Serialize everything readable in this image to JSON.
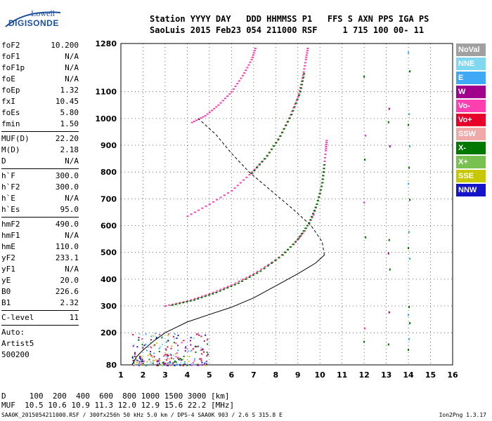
{
  "logo": {
    "line1": "Lowell",
    "line2": "DIGISONDE"
  },
  "header": {
    "line1": "Station YYYY DAY   DDD HHMMSS P1   FFS S AXN PPS IGA PS",
    "line2": "SaoLuis 2015 Feb23 054 211000 RSF     1 715 100 00- 11"
  },
  "params": {
    "g1": [
      {
        "name": "foF2",
        "value": "10.200"
      },
      {
        "name": "foF1",
        "value": "N/A"
      },
      {
        "name": "foF1p",
        "value": "N/A"
      },
      {
        "name": "foE",
        "value": "N/A"
      },
      {
        "name": "foEp",
        "value": "1.32"
      },
      {
        "name": "fxI",
        "value": "10.45"
      },
      {
        "name": "foEs",
        "value": "5.80"
      },
      {
        "name": "fmin",
        "value": "1.50"
      }
    ],
    "g2": [
      {
        "name": "MUF(D)",
        "value": "22.20"
      },
      {
        "name": "M(D)",
        "value": "2.18"
      },
      {
        "name": "D",
        "value": "N/A"
      }
    ],
    "g3": [
      {
        "name": "h`F",
        "value": "300.0"
      },
      {
        "name": "h`F2",
        "value": "300.0"
      },
      {
        "name": "h`E",
        "value": "N/A"
      },
      {
        "name": "h`Es",
        "value": "95.0"
      }
    ],
    "g4": [
      {
        "name": "hmF2",
        "value": "490.0"
      },
      {
        "name": "hmF1",
        "value": "N/A"
      },
      {
        "name": "hmE",
        "value": "110.0"
      },
      {
        "name": "yF2",
        "value": "233.1"
      },
      {
        "name": "yF1",
        "value": "N/A"
      },
      {
        "name": "yE",
        "value": "20.0"
      },
      {
        "name": "B0",
        "value": "226.6"
      },
      {
        "name": "B1",
        "value": "2.32"
      }
    ],
    "g5": [
      {
        "name": "C-level",
        "value": "11"
      }
    ],
    "auto": [
      "Auto:",
      "Artist5",
      "500200"
    ]
  },
  "legend": [
    {
      "label": "NoVal",
      "color": "#a0a0a0"
    },
    {
      "label": "NNE",
      "color": "#7fd8f0"
    },
    {
      "label": "E",
      "color": "#3fa9f5"
    },
    {
      "label": "W",
      "color": "#a0008c"
    },
    {
      "label": "Vo-",
      "color": "#ff3fb0"
    },
    {
      "label": "Vo+",
      "color": "#e8002a"
    },
    {
      "label": "SSW",
      "color": "#f0a8a8"
    },
    {
      "label": "X-",
      "color": "#007800"
    },
    {
      "label": "X+",
      "color": "#78c050"
    },
    {
      "label": "SSE",
      "color": "#c8c800"
    },
    {
      "label": "NNW",
      "color": "#1414c8"
    }
  ],
  "bottom": {
    "line1": "D     100  200  400  600  800 1000 1500 3000 [km]",
    "line2": "MUF  10.5 10.6 10.9 11.3 12.0 12.9 15.6 22.2 [MHz]"
  },
  "footer": {
    "left": "SAA0K_2015054211000.RSF / 300fx256h 50 kHz 5.0 km / DPS-4 SAA0K 903 / 2.6 S 315.8 E",
    "right": "Ion2Png 1.3.17"
  },
  "chart_data": {
    "type": "scatter",
    "xlim": [
      1,
      16
    ],
    "ylim": [
      80,
      1280
    ],
    "xticks": [
      1,
      2,
      3,
      4,
      5,
      6,
      7,
      8,
      9,
      10,
      11,
      12,
      13,
      14,
      15,
      16
    ],
    "yticks": [
      80,
      200,
      300,
      400,
      500,
      600,
      700,
      800,
      900,
      1000,
      1100,
      1280
    ],
    "grid": true,
    "legend_position": "right",
    "series": [
      {
        "color": "#ff3fb0",
        "points": [
          [
            3.0,
            300
          ],
          [
            4.0,
            318
          ],
          [
            5.0,
            345
          ],
          [
            6.0,
            378
          ],
          [
            7.0,
            420
          ],
          [
            8.0,
            472
          ],
          [
            8.8,
            530
          ],
          [
            9.3,
            580
          ],
          [
            9.7,
            640
          ],
          [
            10.0,
            720
          ],
          [
            10.15,
            800
          ],
          [
            10.25,
            880
          ],
          [
            10.3,
            925
          ]
        ]
      },
      {
        "color": "#007800",
        "points": [
          [
            3.3,
            303
          ],
          [
            4.3,
            322
          ],
          [
            5.3,
            350
          ],
          [
            6.3,
            385
          ],
          [
            7.3,
            430
          ],
          [
            8.3,
            490
          ],
          [
            9.0,
            550
          ],
          [
            9.5,
            610
          ],
          [
            9.85,
            680
          ],
          [
            10.1,
            760
          ],
          [
            10.2,
            840
          ]
        ]
      },
      {
        "color": "#ff3fb0",
        "points": [
          [
            4.0,
            635
          ],
          [
            5.0,
            680
          ],
          [
            6.0,
            730
          ],
          [
            6.8,
            790
          ],
          [
            7.5,
            850
          ],
          [
            8.1,
            920
          ],
          [
            8.6,
            1000
          ],
          [
            9.0,
            1080
          ],
          [
            9.2,
            1150
          ],
          [
            9.35,
            1220
          ],
          [
            9.45,
            1270
          ]
        ]
      },
      {
        "color": "#007800",
        "points": [
          [
            6.9,
            795
          ],
          [
            7.6,
            860
          ],
          [
            8.2,
            935
          ],
          [
            8.7,
            1015
          ],
          [
            9.1,
            1100
          ],
          [
            9.3,
            1180
          ]
        ]
      },
      {
        "color": "#ff3fb0",
        "points": [
          [
            4.2,
            985
          ],
          [
            4.8,
            1010
          ],
          [
            5.4,
            1050
          ],
          [
            6.0,
            1100
          ],
          [
            6.5,
            1160
          ],
          [
            6.9,
            1220
          ],
          [
            7.1,
            1270
          ]
        ]
      }
    ],
    "profile": [
      [
        1.5,
        80
      ],
      [
        1.7,
        110
      ],
      [
        2.0,
        135
      ],
      [
        2.5,
        170
      ],
      [
        3.0,
        200
      ],
      [
        4.0,
        240
      ],
      [
        5.0,
        268
      ],
      [
        6.0,
        295
      ],
      [
        7.0,
        330
      ],
      [
        8.0,
        375
      ],
      [
        9.0,
        420
      ],
      [
        9.8,
        460
      ],
      [
        10.2,
        490
      ],
      [
        10.1,
        540
      ],
      [
        9.6,
        600
      ],
      [
        8.8,
        660
      ],
      [
        7.8,
        730
      ],
      [
        6.8,
        800
      ],
      [
        6.0,
        870
      ],
      [
        5.3,
        940
      ],
      [
        4.5,
        1000
      ]
    ],
    "scatter_strips": [
      {
        "x": 14.0,
        "color": "#3fa9f5",
        "y_values": [
          140,
          180,
          240,
          270,
          300,
          480,
          520,
          580,
          700,
          760,
          820,
          900,
          980,
          1020,
          1180,
          1250
        ]
      },
      {
        "x": 13.1,
        "color": "#a0008c",
        "y_values": [
          160,
          280,
          440,
          500,
          550,
          900,
          990,
          1040
        ]
      },
      {
        "x": 12.0,
        "color": "#ff3fb0",
        "y_values": [
          170,
          220,
          560,
          690,
          850,
          940,
          1160
        ]
      }
    ],
    "low_cluster": {
      "x_range": [
        1.5,
        5.0
      ],
      "y_range": [
        80,
        200
      ]
    }
  }
}
